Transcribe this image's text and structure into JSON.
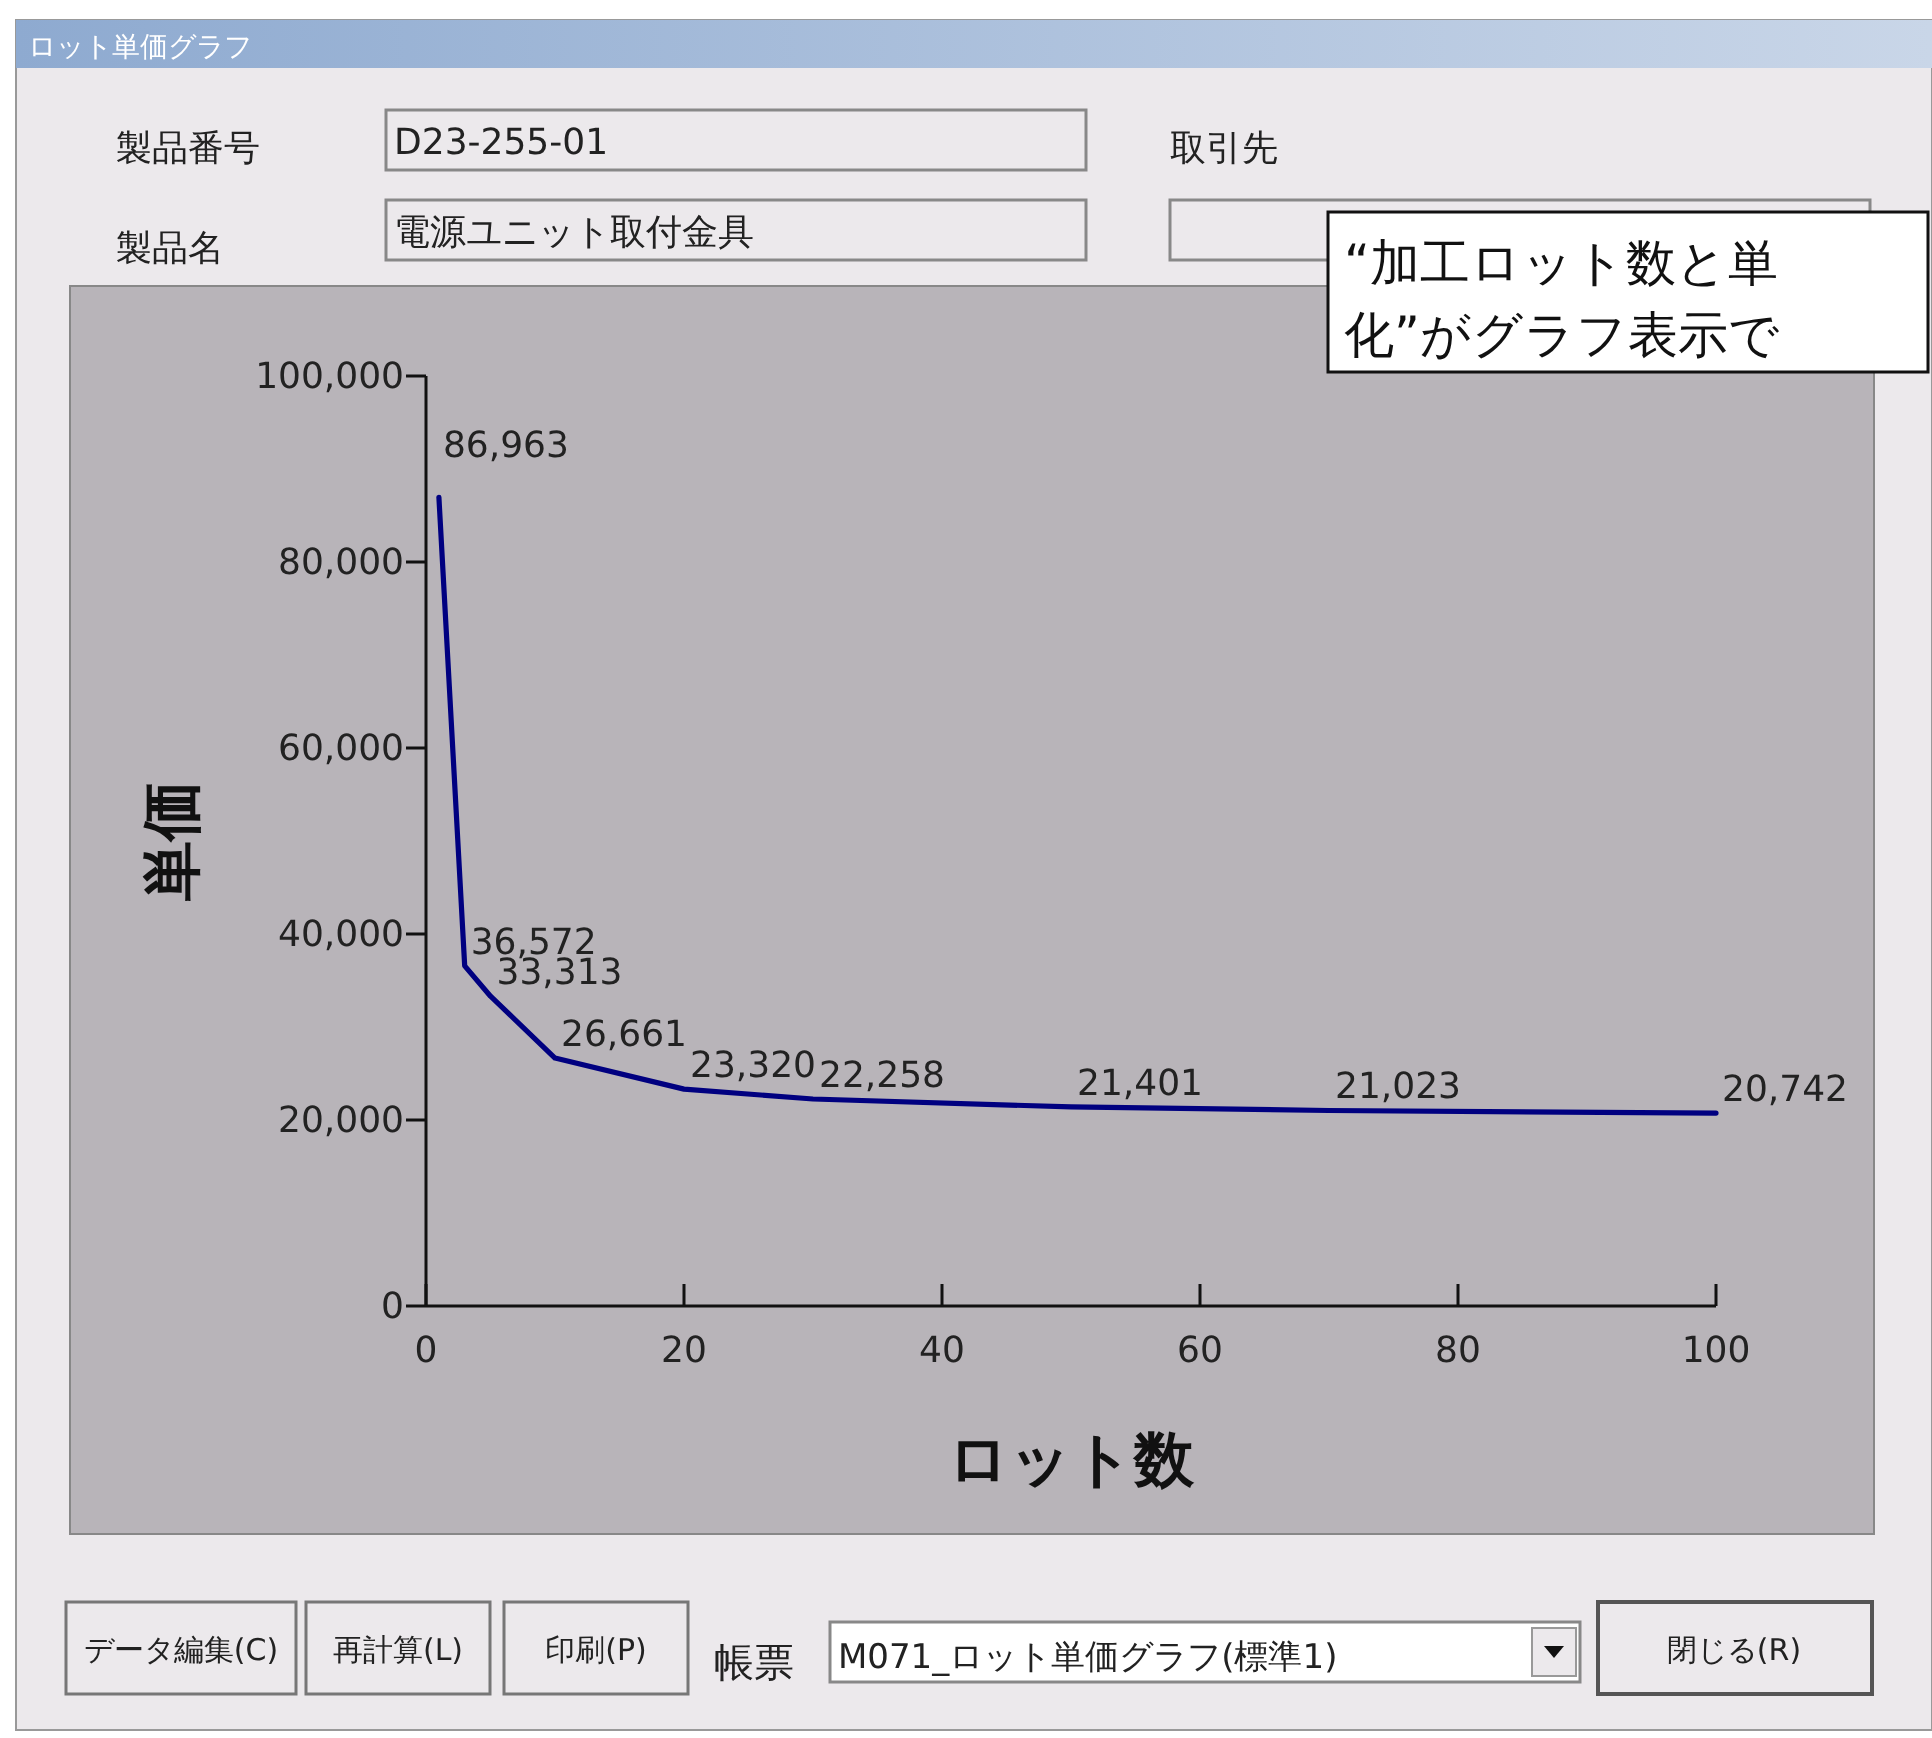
{
  "chart_data": {
    "type": "line",
    "title": "ロット単価グラフ",
    "xlabel": "ロット数",
    "ylabel": "単価",
    "x": [
      1,
      3,
      5,
      10,
      20,
      30,
      50,
      70,
      100
    ],
    "series": [
      {
        "color": "#000080",
        "values": [
          86963,
          36572,
          33313,
          26661,
          23320,
          22258,
          21401,
          21023,
          20742
        ],
        "value_labels": [
          "86,963",
          "36,572",
          "33,313",
          "26,661",
          "23,320",
          "22,258",
          "21,401",
          "21,023",
          "20,742"
        ]
      }
    ],
    "xlim": [
      0,
      100
    ],
    "xticks": [
      0,
      20,
      40,
      60,
      80,
      100
    ],
    "ylim": [
      0,
      100000
    ],
    "yticks": [
      0,
      {
        "value": 20000,
        "label": "20,000"
      },
      {
        "value": 40000,
        "label": "40,000"
      },
      {
        "value": 60000,
        "label": "60,000"
      },
      {
        "value": 80000,
        "label": "80,000"
      },
      {
        "value": 100000,
        "label": "100,000"
      }
    ],
    "grid": false,
    "marker": "none",
    "line_style": "solid",
    "annotations": [
      "製品番号",
      "D23-255-01",
      "取引先",
      "製品名",
      "電源ユニット取付金具",
      "“加工ロット数と単",
      "化”がグラフ表示で",
      "データ編集(C)",
      "再計算(L)",
      "印刷(P)",
      "帳票",
      "M071_ロット単価グラフ(標準1)",
      "閉じる(R)"
    ]
  }
}
